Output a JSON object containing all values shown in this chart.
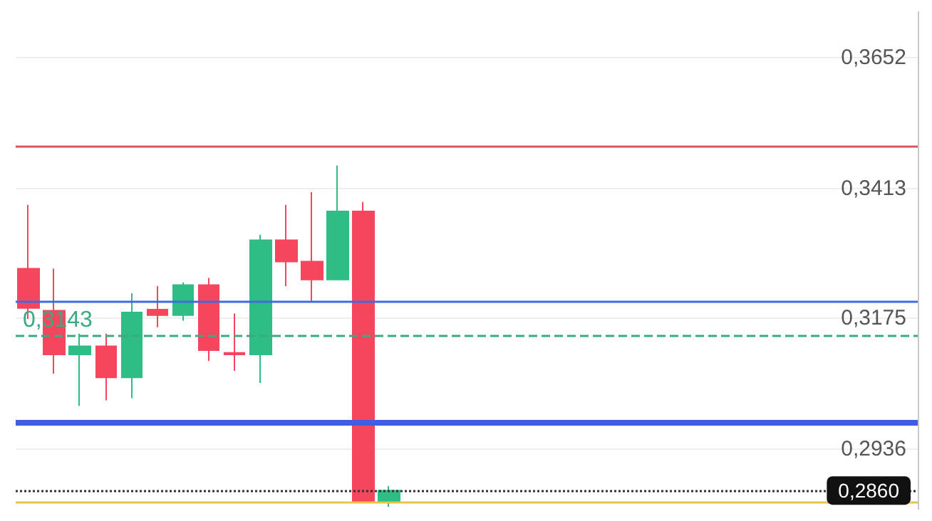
{
  "chart_data": {
    "type": "candlestick",
    "categories": [
      null,
      null,
      null,
      null,
      null,
      null,
      null,
      null,
      null,
      null,
      null,
      null,
      null,
      null,
      null,
      null,
      null,
      null,
      null,
      null,
      null,
      null,
      null,
      null,
      null,
      null,
      null,
      null,
      null,
      null,
      null,
      null,
      null,
      null,
      null
    ],
    "ohlc": [
      [
        0.3266,
        0.3383,
        0.3174,
        0.3194
      ],
      [
        0.3189,
        0.3266,
        0.3074,
        0.3109
      ],
      [
        0.3109,
        0.3147,
        0.3015,
        0.3124
      ],
      [
        0.3124,
        0.3147,
        0.3025,
        0.3067
      ],
      [
        0.3067,
        0.3221,
        0.3029,
        0.3186
      ],
      [
        0.3191,
        0.3234,
        0.3159,
        0.3181
      ],
      [
        0.3181,
        0.3241,
        0.3171,
        0.3236
      ],
      [
        0.3236,
        0.3249,
        0.3097,
        0.3117
      ],
      [
        0.3112,
        0.3184,
        0.3079,
        0.3109
      ],
      [
        0.3109,
        0.3328,
        0.3057,
        0.3318
      ],
      [
        0.3318,
        0.3383,
        0.3234,
        0.3279
      ],
      [
        0.3279,
        0.3406,
        0.3206,
        0.3246
      ],
      [
        0.3246,
        0.3455,
        0.3246,
        0.3371
      ],
      [
        0.3371,
        0.3388,
        0.2838,
        0.2838
      ],
      [
        0.2838,
        0.2868,
        0.283,
        0.286
      ],
      null,
      null,
      null,
      null,
      null,
      null,
      null,
      null,
      null,
      null,
      null,
      null,
      null,
      null,
      null,
      null,
      null,
      null,
      null,
      null
    ],
    "colors": [
      "#f6465d",
      "#f6465d",
      "#2ebd85",
      "#f6465d",
      "#2ebd85",
      "#f6465d",
      "#2ebd85",
      "#f6465d",
      "#f6465d",
      "#2ebd85",
      "#f6465d",
      "#f6465d",
      "#2ebd85",
      "#f6465d",
      "#2ebd85",
      null,
      null,
      null,
      null,
      null,
      null,
      null,
      null,
      null,
      null,
      null,
      null,
      null,
      null,
      null,
      null,
      null,
      null,
      null,
      null
    ],
    "ylim": [
      0.2825,
      0.3737
    ],
    "yticks": [
      {
        "value": 0.2936,
        "label": "0,2936"
      },
      {
        "value": 0.3175,
        "label": "0,3175"
      },
      {
        "value": 0.3413,
        "label": "0,3413"
      },
      {
        "value": 0.3652,
        "label": "0,3652"
      }
    ],
    "grid": "y",
    "ref_lines": [
      {
        "axis": "y",
        "value": 0.349,
        "color": "#e0525a",
        "line_style": "solid"
      },
      {
        "axis": "y",
        "value": 0.3206,
        "color": "#3f6ae0",
        "line_style": "solid"
      },
      {
        "axis": "y",
        "value": 0.3143,
        "label": "0,3143",
        "color": "#3aaa80",
        "line_style": "dashed"
      },
      {
        "axis": "y",
        "value": 0.2985,
        "color": "#3f5fe0",
        "line_style": "solid"
      },
      {
        "axis": "y",
        "value": 0.2838,
        "color": "#e8c547",
        "line_style": "solid"
      },
      {
        "axis": "y",
        "value": 0.286,
        "label": "0,2860",
        "color": "#333333",
        "line_style": "dotted"
      }
    ]
  }
}
